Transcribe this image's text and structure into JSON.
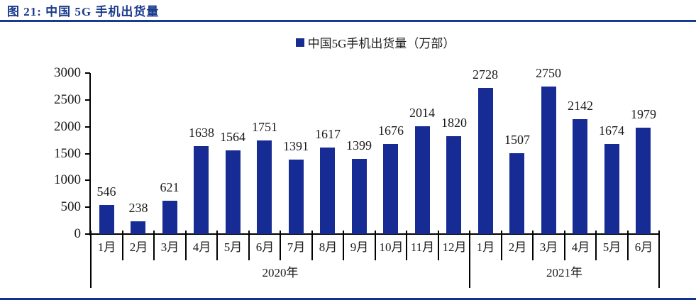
{
  "header": {
    "title": "图 21: 中国 5G 手机出货量"
  },
  "legend": {
    "label": "中国5G手机出货量（万部）"
  },
  "colors": {
    "bar": "#162B94",
    "legend_swatch": "#162B94",
    "title": "#1A3A8C",
    "top_rule": "#1A3A8C",
    "bottom_rule": "#16308F",
    "axis": "#000000",
    "label_text": "#1a1a1a"
  },
  "chart_data": {
    "type": "bar",
    "title": "中国5G手机出货量（万部）",
    "legend": [
      "中国5G手机出货量（万部）"
    ],
    "legend_position": "top",
    "xlabel": "",
    "ylabel": "",
    "ylim": [
      0,
      3000
    ],
    "yticks": [
      0,
      500,
      1000,
      1500,
      2000,
      2500,
      3000
    ],
    "grid": false,
    "data_labels": true,
    "categories": [
      "1月",
      "2月",
      "3月",
      "4月",
      "5月",
      "6月",
      "7月",
      "8月",
      "9月",
      "10月",
      "11月",
      "12月",
      "1月",
      "2月",
      "3月",
      "4月",
      "5月",
      "6月"
    ],
    "values": [
      546,
      238,
      621,
      1638,
      1564,
      1751,
      1391,
      1617,
      1399,
      1676,
      2014,
      1820,
      2728,
      1507,
      2750,
      2142,
      1674,
      1979
    ],
    "year_groups": [
      {
        "label": "2020年",
        "span": 12
      },
      {
        "label": "2021年",
        "span": 6
      }
    ]
  }
}
